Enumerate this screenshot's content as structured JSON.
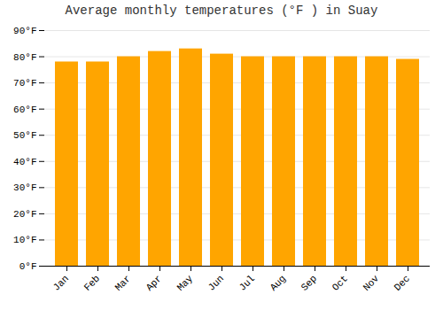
{
  "chart_data": {
    "type": "bar",
    "title": "Average monthly temperatures (°F ) in Suay",
    "categories": [
      "Jan",
      "Feb",
      "Mar",
      "Apr",
      "May",
      "Jun",
      "Jul",
      "Aug",
      "Sep",
      "Oct",
      "Nov",
      "Dec"
    ],
    "values": [
      78,
      78,
      80,
      82,
      83,
      81,
      80,
      80,
      80,
      80,
      80,
      79
    ],
    "color": "#FFA500",
    "ylim": [
      0,
      90
    ],
    "yticks": [
      {
        "value": 0,
        "label": "0°F"
      },
      {
        "value": 10,
        "label": "10°F"
      },
      {
        "value": 20,
        "label": "20°F"
      },
      {
        "value": 30,
        "label": "30°F"
      },
      {
        "value": 40,
        "label": "40°F"
      },
      {
        "value": 50,
        "label": "50°F"
      },
      {
        "value": 60,
        "label": "60°F"
      },
      {
        "value": 70,
        "label": "70°F"
      },
      {
        "value": 80,
        "label": "80°F"
      },
      {
        "value": 90,
        "label": "90°F"
      }
    ],
    "grid": true
  }
}
